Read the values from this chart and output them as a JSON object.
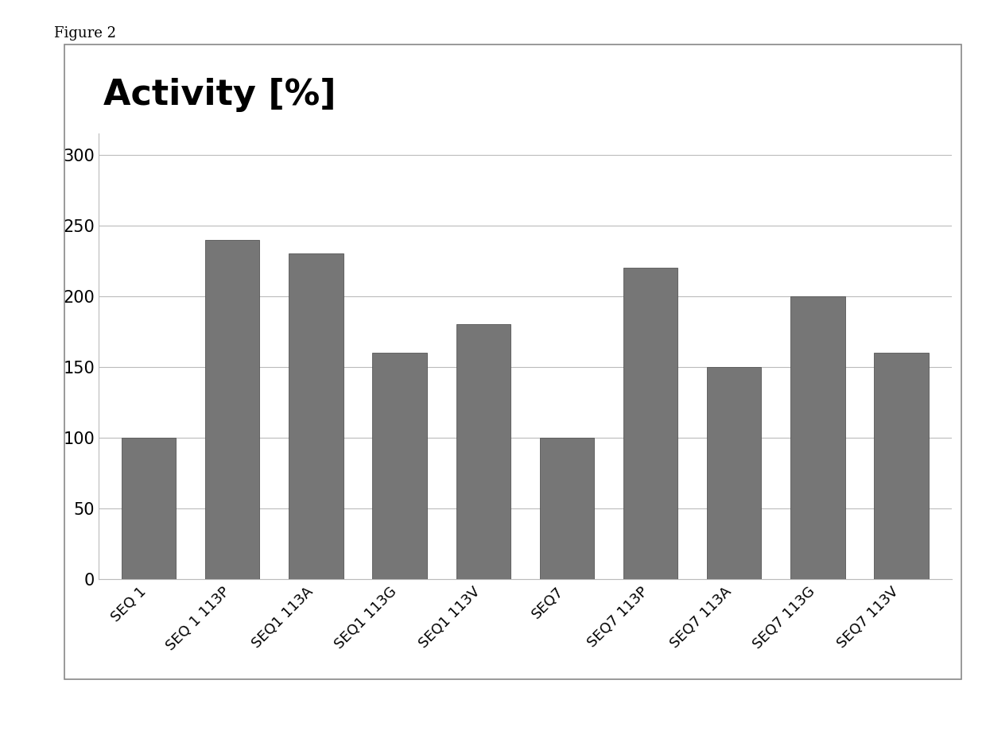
{
  "categories": [
    "SEQ 1",
    "SEQ 1 113P",
    "SEQ1 113A",
    "SEQ1 113G",
    "SEQ1 113V",
    "SEQ7",
    "SEQ7 113P",
    "SEQ7 113A",
    "SEQ7 113G",
    "SEQ7 113V"
  ],
  "values": [
    100,
    240,
    230,
    160,
    180,
    100,
    220,
    150,
    200,
    160
  ],
  "bar_color": "#767676",
  "title": "Activity [%]",
  "title_fontsize": 32,
  "title_fontweight": "bold",
  "ylabel": "",
  "xlabel": "",
  "ylim": [
    0,
    315
  ],
  "yticks": [
    0,
    50,
    100,
    150,
    200,
    250,
    300
  ],
  "figure_label": "Figure 2",
  "figure_label_fontsize": 13,
  "ytick_fontsize": 15,
  "xtick_fontsize": 13,
  "background_color": "#ffffff",
  "grid_color": "#bbbbbb",
  "bar_edge_color": "#555555",
  "bar_width": 0.65,
  "box_edge_color": "#888888"
}
